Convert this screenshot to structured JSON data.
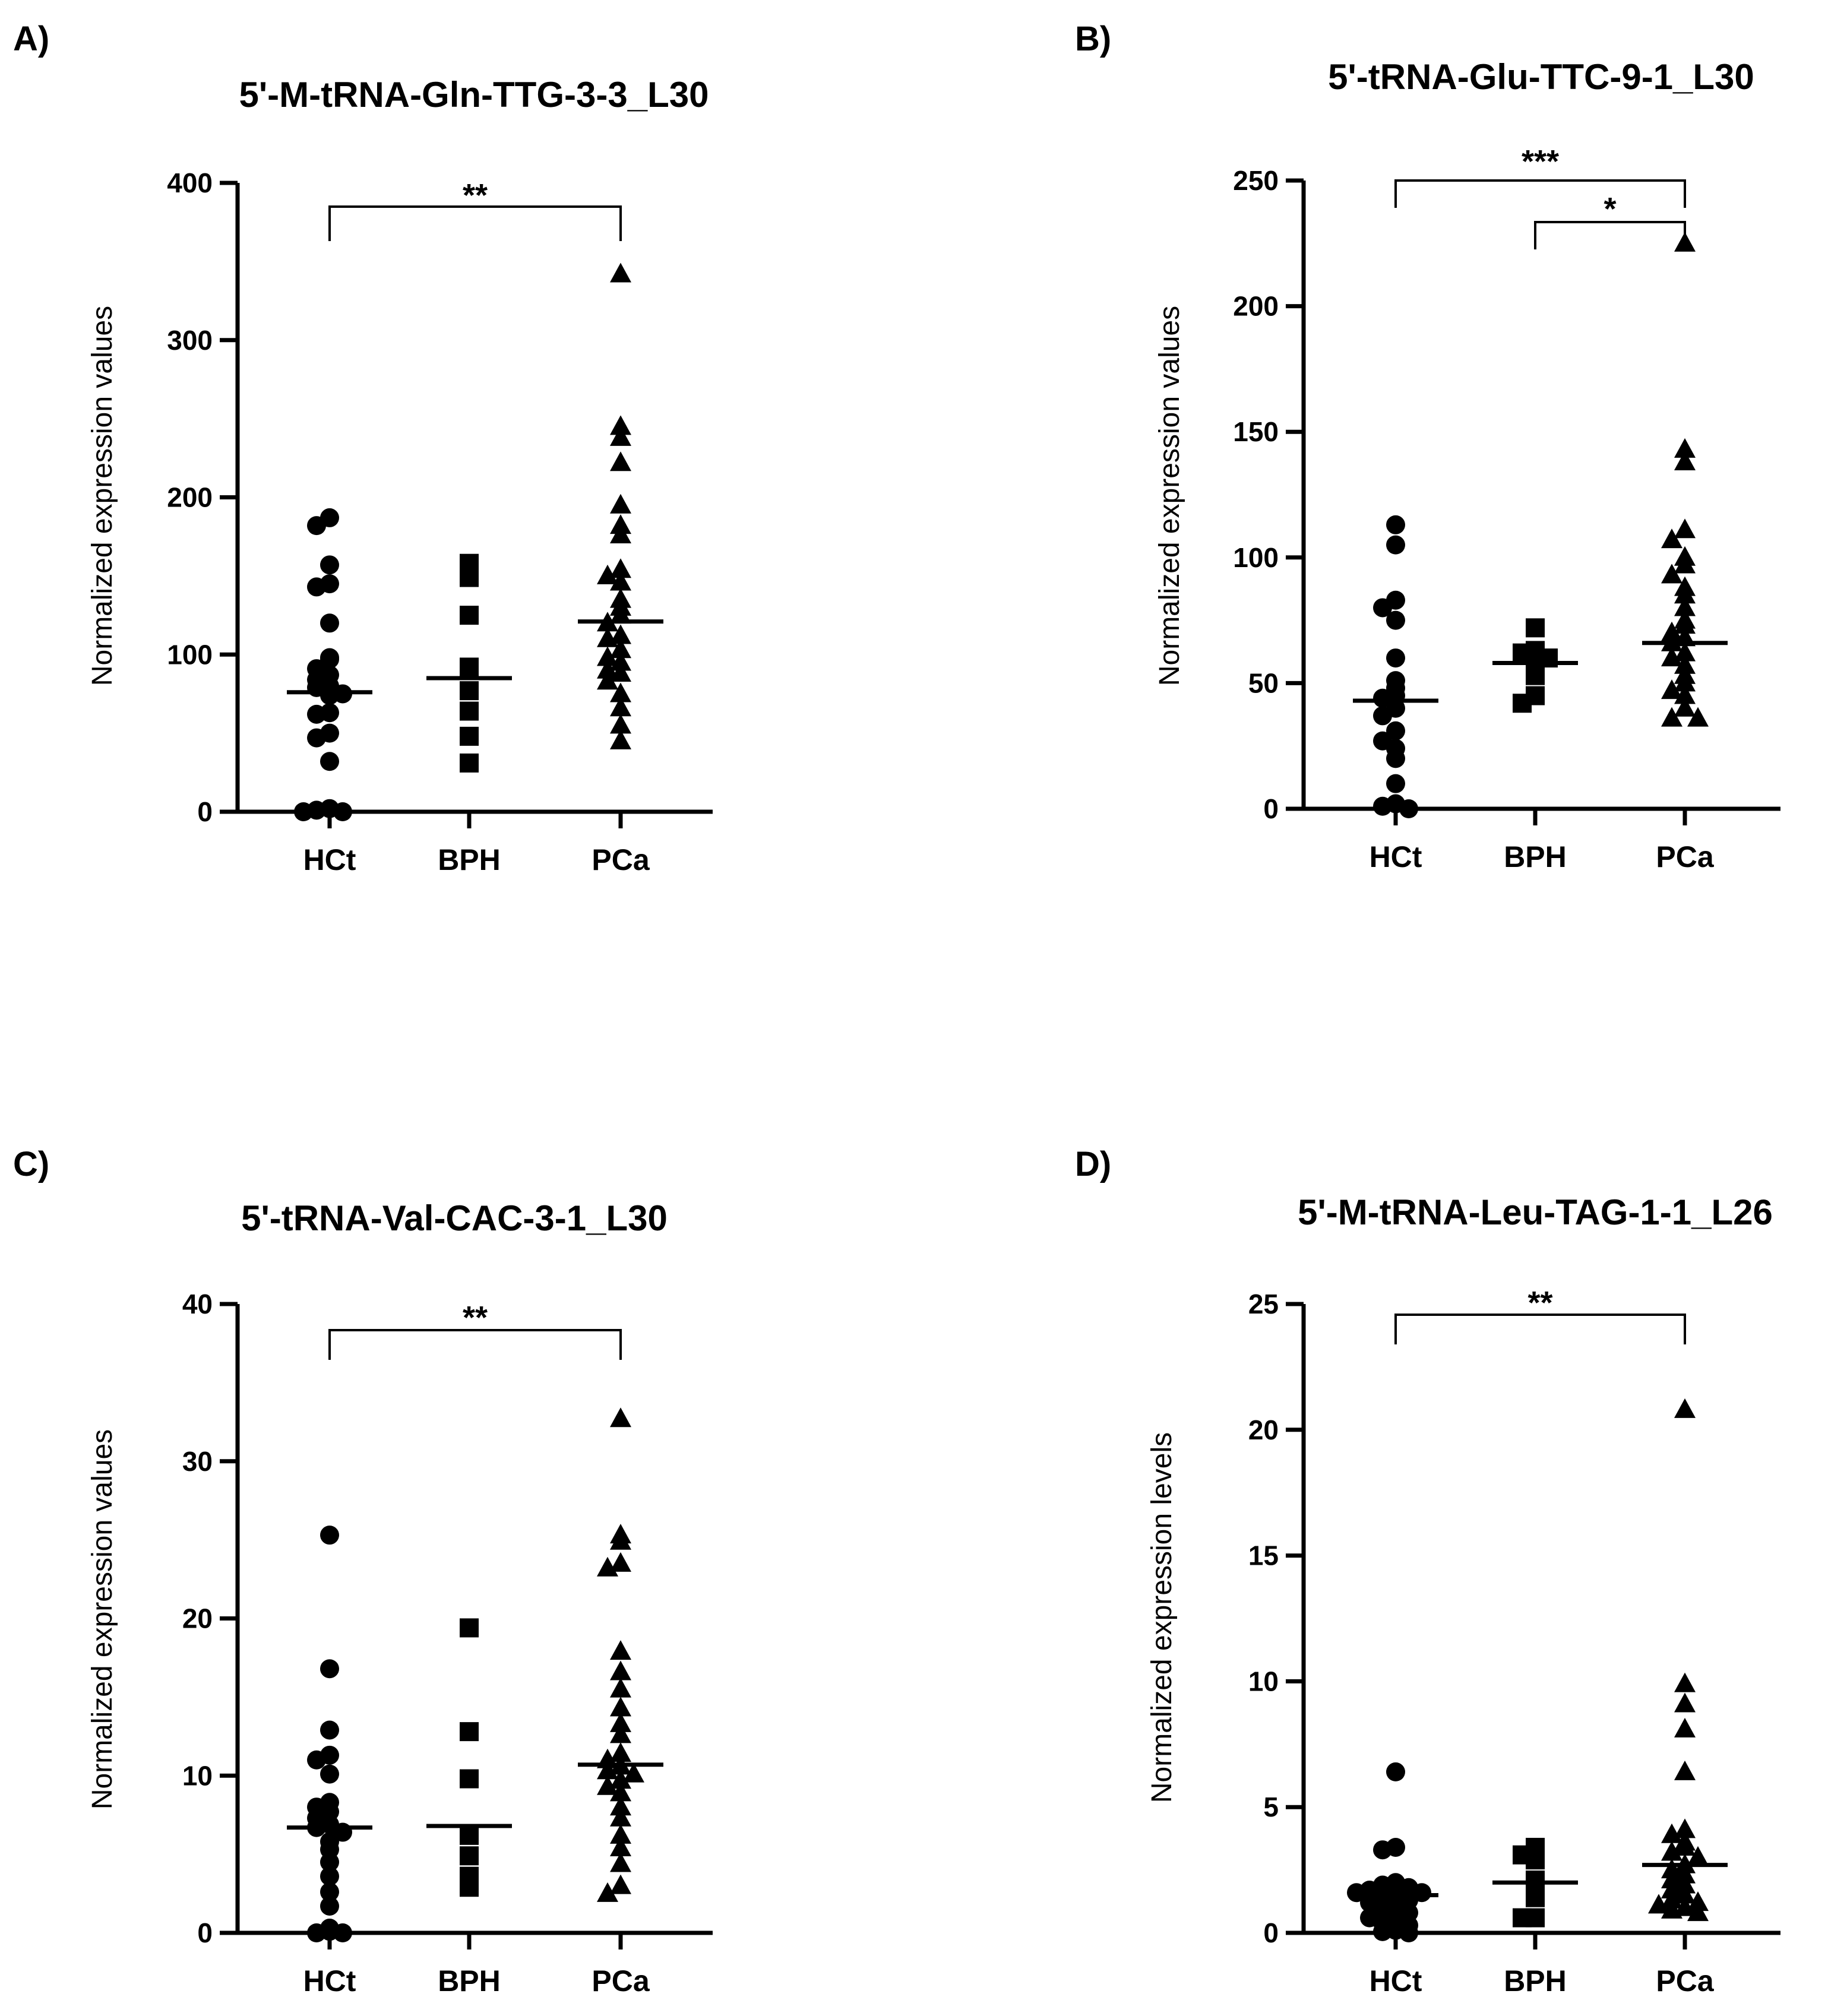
{
  "chart_data": [
    {
      "type": "scatter",
      "panel_label": "A)",
      "title": "5'-M-tRNA-Gln-TTG-3-3_L30",
      "xlabel": "",
      "ylabel": "Normalized expression values",
      "ylim": [
        0,
        400
      ],
      "yticks": [
        "0",
        "100",
        "200",
        "300",
        "400"
      ],
      "categories": [
        "HCt",
        "BPH",
        "PCa"
      ],
      "series": [
        {
          "name": "HCt",
          "marker": "circle",
          "mean": 76,
          "values": [
            187,
            182,
            157,
            145,
            143,
            120,
            98,
            97,
            91,
            87,
            84,
            80,
            79,
            75,
            74,
            63,
            62,
            50,
            47,
            32,
            2,
            1,
            0,
            0
          ]
        },
        {
          "name": "BPH",
          "marker": "square",
          "mean": 85,
          "values": [
            158,
            149,
            125,
            92,
            77,
            64,
            48,
            31
          ]
        },
        {
          "name": "PCa",
          "marker": "triangle",
          "mean": 121,
          "values": [
            342,
            245,
            238,
            222,
            195,
            182,
            176,
            154,
            150,
            146,
            135,
            130,
            125,
            120,
            112,
            110,
            103,
            98,
            95,
            90,
            88,
            83,
            75,
            66,
            55,
            45
          ]
        }
      ],
      "significance": [
        {
          "groups": [
            "HCt",
            "PCa"
          ],
          "label": "**"
        }
      ]
    },
    {
      "type": "scatter",
      "panel_label": "B)",
      "title": "5'-tRNA-Glu-TTC-9-1_L30",
      "xlabel": "",
      "ylabel": "Normalized expression values",
      "ylim": [
        0,
        250
      ],
      "yticks": [
        "0",
        "50",
        "100",
        "150",
        "200",
        "250"
      ],
      "categories": [
        "HCt",
        "BPH",
        "PCa"
      ],
      "series": [
        {
          "name": "HCt",
          "marker": "circle",
          "mean": 43,
          "values": [
            113,
            105,
            83,
            80,
            75,
            60,
            51,
            48,
            45,
            44,
            40,
            37,
            31,
            27,
            24,
            20,
            10,
            2,
            1,
            0
          ]
        },
        {
          "name": "BPH",
          "marker": "square",
          "mean": 58,
          "values": [
            72,
            63,
            62,
            60,
            58,
            53,
            45,
            42
          ]
        },
        {
          "name": "PCa",
          "marker": "triangle",
          "mean": 66,
          "values": [
            225,
            143,
            138,
            111,
            107,
            100,
            97,
            93,
            88,
            85,
            80,
            75,
            73,
            70,
            68,
            66,
            62,
            60,
            57,
            53,
            50,
            47,
            45,
            40,
            36,
            36
          ]
        }
      ],
      "significance": [
        {
          "groups": [
            "HCt",
            "PCa"
          ],
          "label": "***"
        },
        {
          "groups": [
            "BPH",
            "PCa"
          ],
          "label": "*"
        }
      ]
    },
    {
      "type": "scatter",
      "panel_label": "C)",
      "title": "5'-tRNA-Val-CAC-3-1_L30",
      "xlabel": "",
      "ylabel": "Normalized expression values",
      "ylim": [
        0,
        40
      ],
      "yticks": [
        "0",
        "10",
        "20",
        "30",
        "40"
      ],
      "categories": [
        "HCt",
        "BPH",
        "PCa"
      ],
      "series": [
        {
          "name": "HCt",
          "marker": "circle",
          "mean": 6.7,
          "values": [
            25.3,
            16.8,
            12.9,
            11.3,
            11.0,
            10.1,
            8.3,
            8.0,
            7.7,
            7.3,
            6.9,
            6.7,
            6.4,
            5.8,
            5.3,
            4.5,
            3.6,
            2.6,
            1.7,
            0.3,
            0.1,
            0,
            0
          ]
        },
        {
          "name": "BPH",
          "marker": "square",
          "mean": 6.8,
          "values": [
            19.4,
            12.8,
            9.8,
            6.2,
            4.9,
            3.6,
            2.9
          ]
        },
        {
          "name": "PCa",
          "marker": "triangle",
          "mean": 10.7,
          "values": [
            32.7,
            25.3,
            24.9,
            23.5,
            23.2,
            17.9,
            16.6,
            15.5,
            14.3,
            13.3,
            12.6,
            11.4,
            11.0,
            10.6,
            10.3,
            10.1,
            9.7,
            9.3,
            8.9,
            8.0,
            7.3,
            6.2,
            5.4,
            4.4,
            3.0,
            2.5
          ]
        }
      ],
      "significance": [
        {
          "groups": [
            "HCt",
            "PCa"
          ],
          "label": "**"
        }
      ]
    },
    {
      "type": "scatter",
      "panel_label": "D)",
      "title": "5'-M-tRNA-Leu-TAG-1-1_L26",
      "xlabel": "",
      "ylabel": "Normalized expression levels",
      "ylim": [
        0,
        25
      ],
      "yticks": [
        "0",
        "5",
        "10",
        "15",
        "20",
        "25"
      ],
      "categories": [
        "HCt",
        "BPH",
        "PCa"
      ],
      "series": [
        {
          "name": "HCt",
          "marker": "circle",
          "mean": 1.5,
          "values": [
            6.4,
            3.4,
            3.3,
            2.0,
            1.9,
            1.8,
            1.7,
            1.6,
            1.6,
            1.5,
            1.4,
            1.3,
            1.2,
            1.0,
            0.9,
            0.8,
            0.6,
            0.5,
            0.4,
            0.3,
            0.1,
            0.05,
            0
          ]
        },
        {
          "name": "BPH",
          "marker": "square",
          "mean": 2.0,
          "values": [
            3.4,
            3.1,
            2.9,
            2.1,
            2.0,
            1.4,
            0.6,
            0.6
          ]
        },
        {
          "name": "PCa",
          "marker": "triangle",
          "mean": 2.7,
          "values": [
            20.8,
            9.9,
            9.1,
            8.1,
            6.4,
            4.1,
            3.9,
            3.6,
            3.4,
            3.2,
            3.0,
            2.7,
            2.5,
            2.3,
            2.1,
            1.9,
            1.7,
            1.5,
            1.3,
            1.2,
            1.1,
            1.0,
            0.9,
            0.8
          ]
        }
      ],
      "significance": [
        {
          "groups": [
            "HCt",
            "PCa"
          ],
          "label": "**"
        }
      ]
    }
  ]
}
